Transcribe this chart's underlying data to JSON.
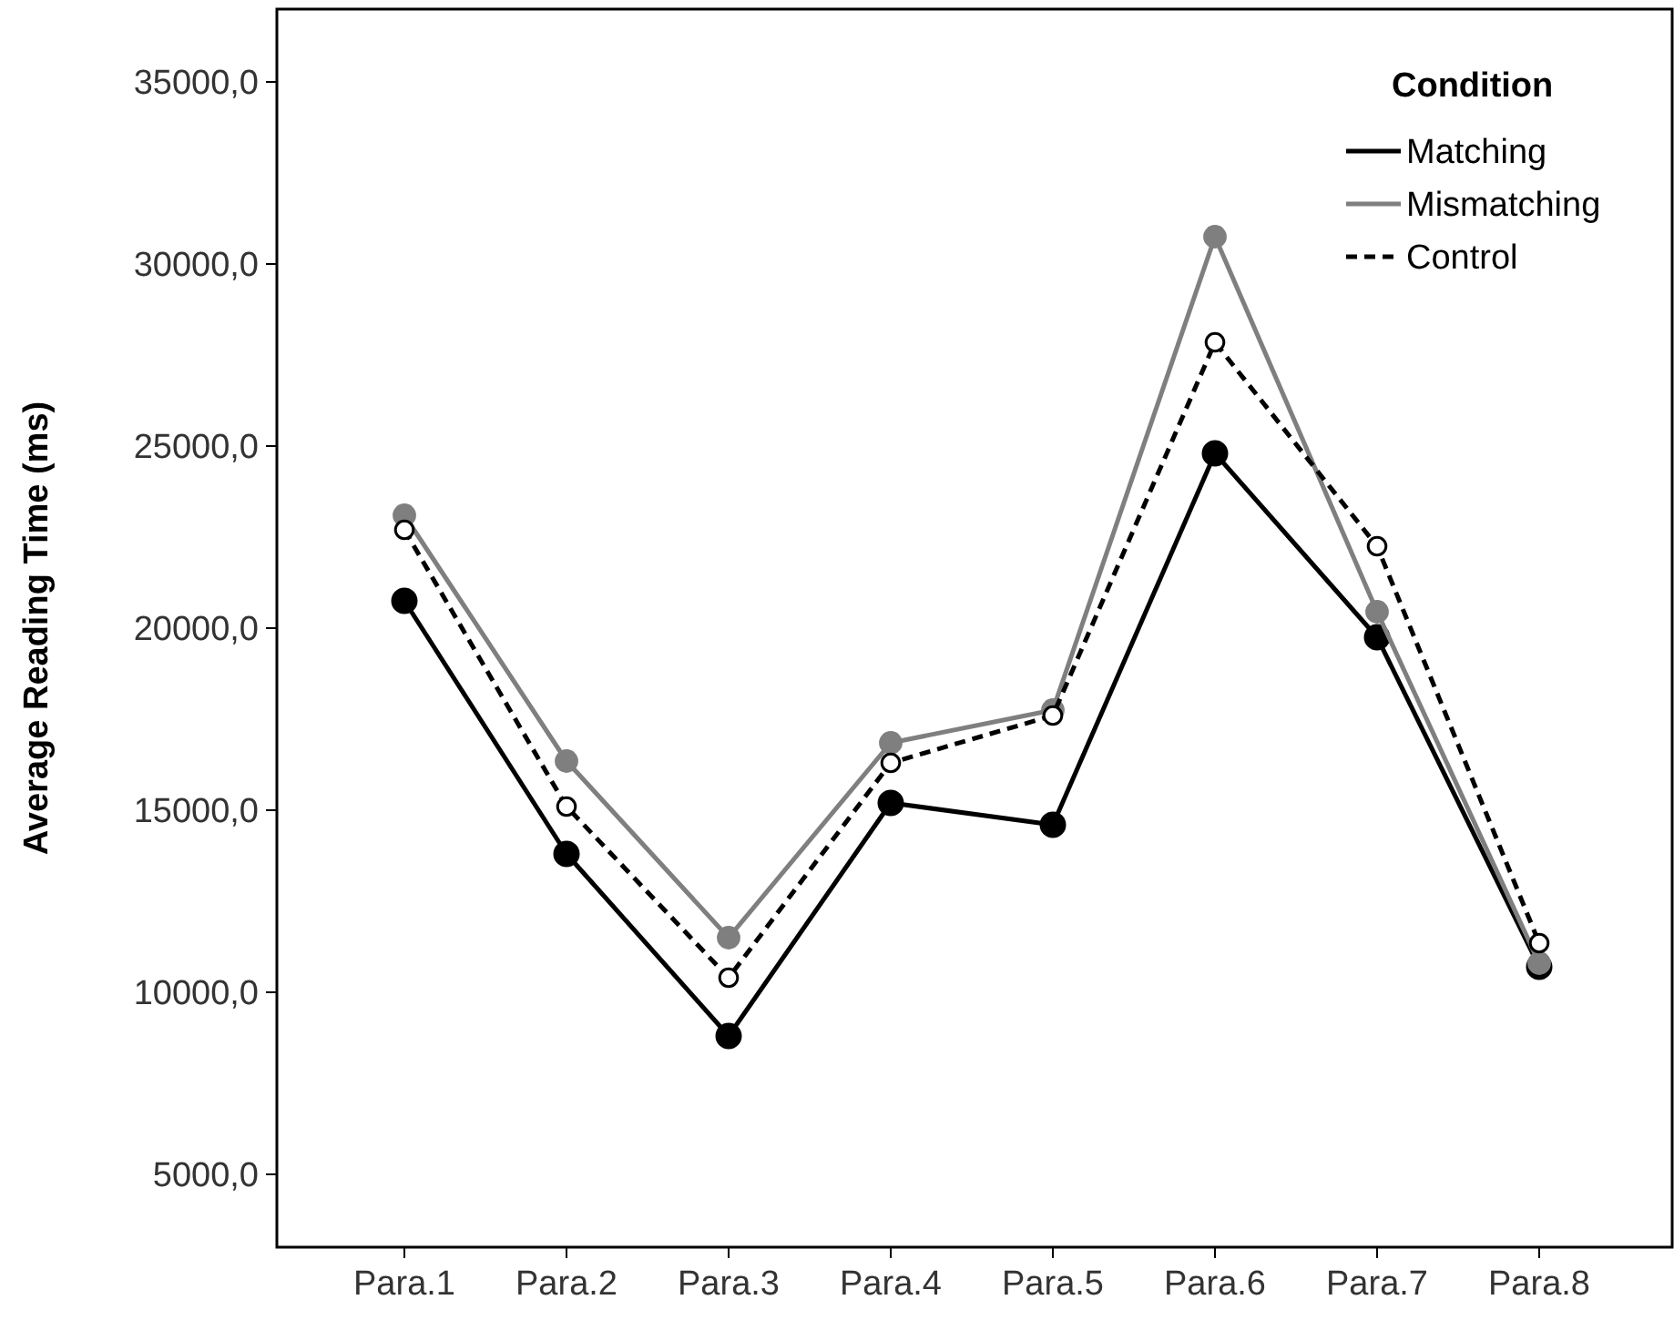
{
  "chart_data": {
    "type": "line",
    "ylabel": "Average Reading Time (ms)",
    "legend_title": "Condition",
    "legend": "top right",
    "marker": "circle",
    "grid": false,
    "categories": [
      "Para.1",
      "Para.2",
      "Para.3",
      "Para.4",
      "Para.5",
      "Para.6",
      "Para.7",
      "Para.8"
    ],
    "ylim": [
      3000,
      37000
    ],
    "yticks": [
      {
        "value": 5000,
        "label": "5000,0"
      },
      {
        "value": 10000,
        "label": "10000,0"
      },
      {
        "value": 15000,
        "label": "15000,0"
      },
      {
        "value": 20000,
        "label": "20000,0"
      },
      {
        "value": 25000,
        "label": "25000,0"
      },
      {
        "value": 30000,
        "label": "30000,0"
      },
      {
        "value": 35000,
        "label": "35000,0"
      }
    ],
    "series": [
      {
        "name": "Matching",
        "color": "#000000",
        "line_style": "solid",
        "values": [
          20750,
          13800,
          8800,
          15200,
          14600,
          24800,
          19750,
          10700
        ]
      },
      {
        "name": "Mismatching",
        "color": "#7f7f7f",
        "line_style": "solid",
        "values": [
          23100,
          16350,
          11500,
          16850,
          17750,
          30750,
          20450,
          10800
        ]
      },
      {
        "name": "Control",
        "color": "#000000",
        "line_style": "dashed",
        "values": [
          22700,
          15100,
          10400,
          16300,
          17600,
          27850,
          22250,
          11350
        ]
      }
    ]
  }
}
